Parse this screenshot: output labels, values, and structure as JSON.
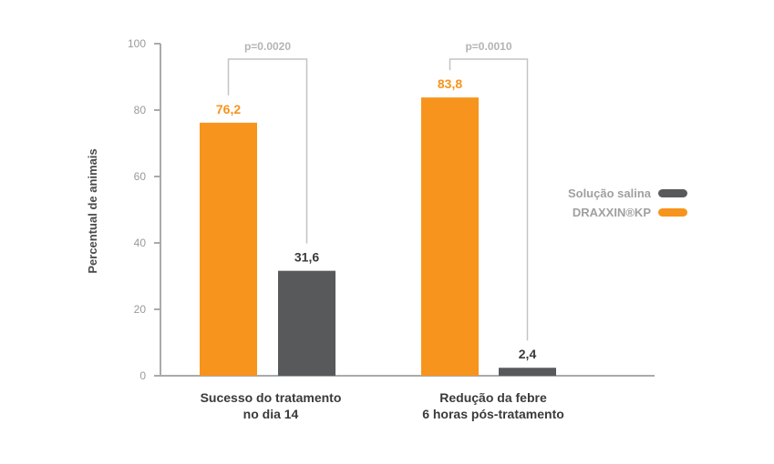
{
  "colors": {
    "orange": "#F7941D",
    "gray": "#58595B",
    "axis": "#AAAAAA"
  },
  "chart_data": {
    "type": "bar",
    "ylabel": "Percentual de animais",
    "xlabel": "",
    "ylim": [
      0,
      100
    ],
    "yticks": [
      0,
      20,
      40,
      60,
      80,
      100
    ],
    "grid": false,
    "legend_position": "right",
    "categories": [
      [
        "Sucesso do tratamento",
        "no dia 14"
      ],
      [
        "Redução da febre",
        "6 horas pós-tratamento"
      ]
    ],
    "series": [
      {
        "name": "DRAXXIN®KP",
        "color": "#F7941D",
        "values": [
          76.2,
          83.8
        ],
        "labels": [
          "76,2",
          "83,8"
        ]
      },
      {
        "name": "Solução salina",
        "color": "#58595B",
        "values": [
          31.6,
          2.4
        ],
        "labels": [
          "31,6",
          "2,4"
        ]
      }
    ],
    "annotations": [
      "p=0.0020",
      "p=0.0010"
    ],
    "legend": [
      {
        "label": "Solução salina",
        "color": "#58595B"
      },
      {
        "label": "DRAXXIN®KP",
        "color": "#F7941D"
      }
    ]
  }
}
